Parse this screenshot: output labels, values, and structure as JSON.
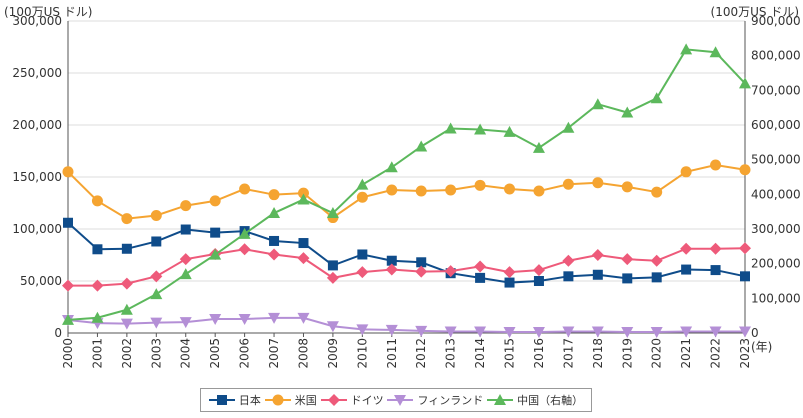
{
  "chart_data": {
    "type": "line",
    "left_axis_unit": "(100万US ドル)",
    "right_axis_unit": "(100万US ドル)",
    "x_unit": "(年)",
    "x": [
      "2000",
      "2001",
      "2002",
      "2003",
      "2004",
      "2005",
      "2006",
      "2007",
      "2008",
      "2009",
      "2010",
      "2011",
      "2012",
      "2013",
      "2014",
      "2015",
      "2016",
      "2017",
      "2018",
      "2019",
      "2020",
      "2021",
      "2022",
      "2023"
    ],
    "y_left": {
      "range": [
        0,
        300000
      ],
      "ticks": [
        "0",
        "50,000",
        "100,000",
        "150,000",
        "200,000",
        "250,000",
        "300,000"
      ]
    },
    "y_right": {
      "range": [
        0,
        900000
      ],
      "ticks": [
        "0",
        "100,000",
        "200,000",
        "300,000",
        "400,000",
        "500,000",
        "600,000",
        "700,000",
        "800,000",
        "900,000"
      ]
    },
    "grid": true,
    "legend_position": "bottom",
    "series": [
      {
        "name": "日本",
        "axis": "left",
        "color": "#0f4c8a",
        "marker": "square",
        "values": [
          106000,
          80500,
          81000,
          88000,
          99500,
          96500,
          98000,
          88500,
          86500,
          65000,
          75500,
          69500,
          68000,
          57500,
          53000,
          48500,
          50000,
          54500,
          56000,
          52500,
          53500,
          61000,
          60500,
          54500
        ]
      },
      {
        "name": "米国",
        "axis": "left",
        "color": "#f5a431",
        "marker": "circle",
        "values": [
          155000,
          127000,
          110000,
          113000,
          122500,
          127000,
          138500,
          133000,
          134500,
          111000,
          130500,
          137500,
          136500,
          137500,
          142000,
          138500,
          136500,
          143000,
          144500,
          140500,
          135500,
          155000,
          161500,
          157000
        ]
      },
      {
        "name": "ドイツ",
        "axis": "left",
        "color": "#ee5a7a",
        "marker": "diamond",
        "values": [
          45500,
          45500,
          47500,
          54500,
          71000,
          76000,
          80500,
          75500,
          72000,
          53000,
          58500,
          61000,
          59000,
          59500,
          64000,
          58500,
          60500,
          69500,
          75000,
          71000,
          69500,
          81000,
          81000,
          81500
        ]
      },
      {
        "name": "フィンランド",
        "axis": "left",
        "color": "#b48fd6",
        "marker": "triangle-down",
        "values": [
          12500,
          9500,
          9000,
          10000,
          10500,
          13500,
          13500,
          14500,
          14500,
          6500,
          3500,
          3000,
          2000,
          1500,
          1500,
          1000,
          1000,
          1500,
          1500,
          1000,
          1000,
          1500,
          1500,
          1500
        ]
      },
      {
        "name": "中国（右軸）",
        "axis": "right",
        "color": "#5cb85c",
        "marker": "triangle-up",
        "values": [
          38000,
          44000,
          67000,
          112000,
          170000,
          226000,
          286000,
          346000,
          385000,
          346000,
          428000,
          478000,
          538000,
          590000,
          587000,
          580000,
          534000,
          592000,
          660000,
          636000,
          677000,
          818000,
          810000,
          720000
        ]
      }
    ]
  }
}
